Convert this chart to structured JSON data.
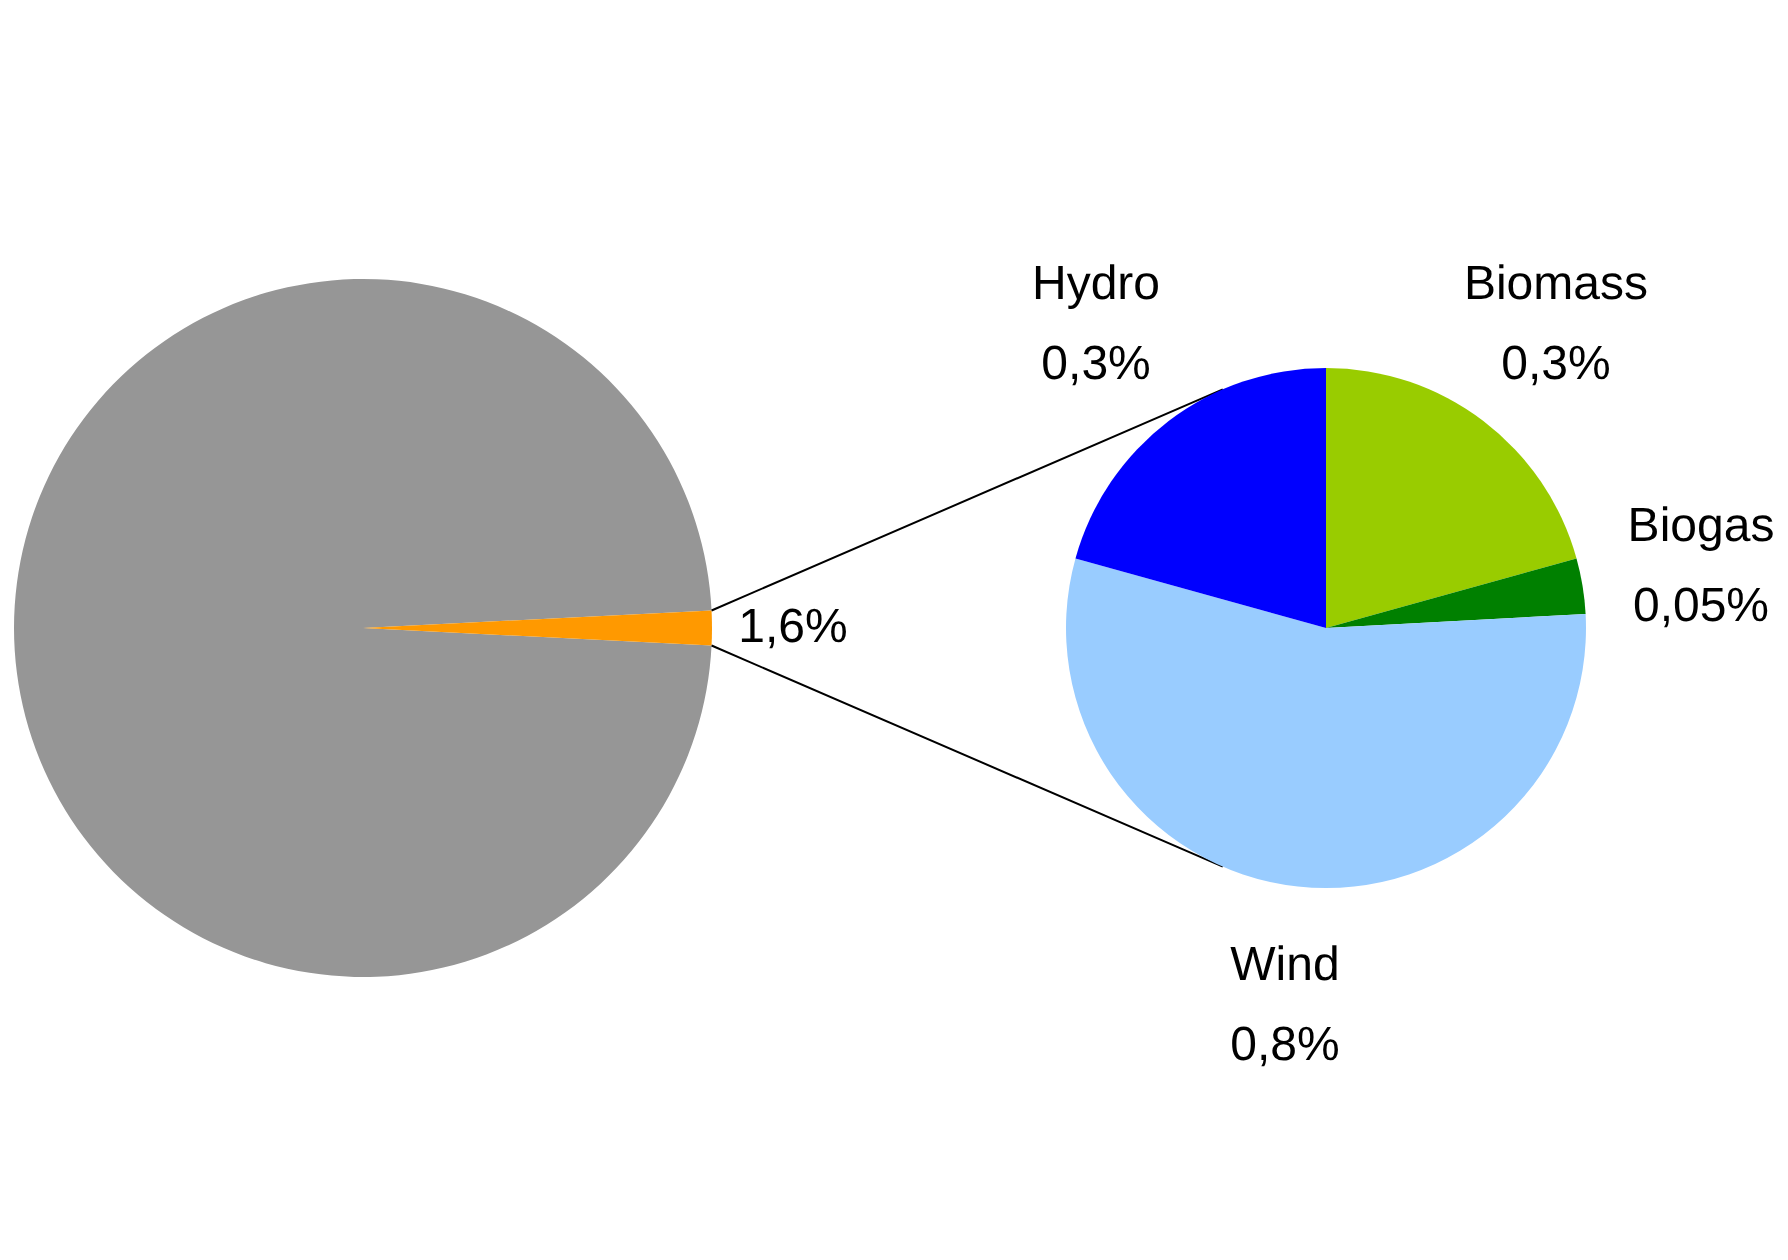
{
  "chart_data": [
    {
      "type": "pie",
      "categories": [
        null,
        null
      ],
      "values": [
        98.4,
        1.6
      ],
      "colors": [
        "#969696",
        "#ff9900"
      ],
      "value_labels": [
        null,
        "1,6%"
      ]
    },
    {
      "type": "pie",
      "categories": [
        "Biomass",
        "Biogas",
        "Wind",
        "Hydro"
      ],
      "values": [
        0.3,
        0.05,
        0.8,
        0.3
      ],
      "colors": [
        "#99cc00",
        "#008000",
        "#99ccff",
        "#0000ff"
      ],
      "value_labels": [
        "0,3%",
        "0,05%",
        "0,8%",
        "0,3%"
      ]
    }
  ]
}
